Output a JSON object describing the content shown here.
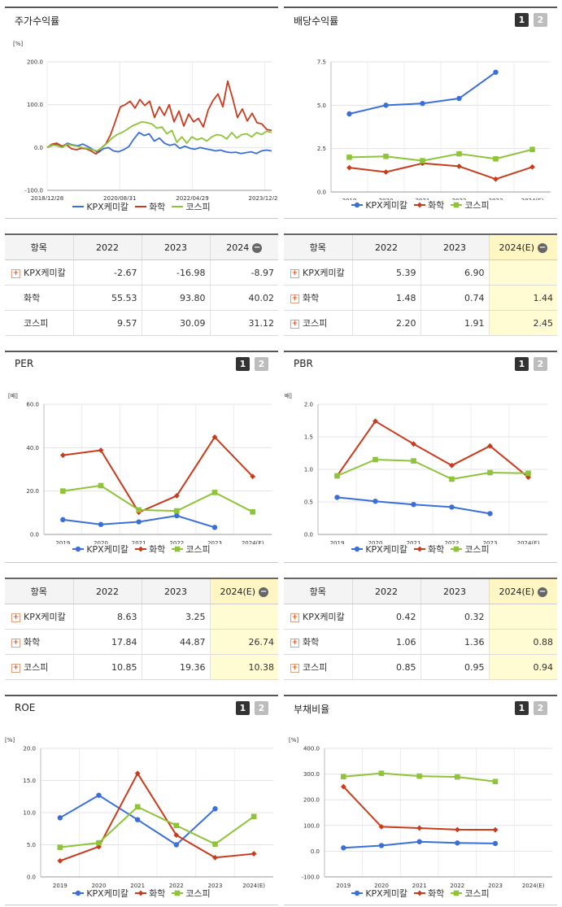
{
  "colors": {
    "kpx": "#3a6fd8",
    "chem": "#c83c1e",
    "kospi": "#8ec33a"
  },
  "series_names": [
    "KPX케미칼",
    "화학",
    "코스피"
  ],
  "tables": {
    "stock": {
      "headers": [
        "항목",
        "2022",
        "2023",
        "2024"
      ],
      "rows": [
        {
          "name": "KPX케미칼",
          "plus": true,
          "values": [
            "-2.67",
            "-16.98",
            "-8.97"
          ]
        },
        {
          "name": "화학",
          "plus": false,
          "values": [
            "55.53",
            "93.80",
            "40.02"
          ]
        },
        {
          "name": "코스피",
          "plus": false,
          "values": [
            "9.57",
            "30.09",
            "31.12"
          ]
        }
      ]
    },
    "dividend": {
      "headers": [
        "항목",
        "2022",
        "2023",
        "2024(E)"
      ],
      "rows": [
        {
          "name": "KPX케미칼",
          "plus": true,
          "values": [
            "5.39",
            "6.90",
            ""
          ]
        },
        {
          "name": "화학",
          "plus": true,
          "values": [
            "1.48",
            "0.74",
            "1.44"
          ]
        },
        {
          "name": "코스피",
          "plus": true,
          "values": [
            "2.20",
            "1.91",
            "2.45"
          ]
        }
      ]
    },
    "per": {
      "headers": [
        "항목",
        "2022",
        "2023",
        "2024(E)"
      ],
      "rows": [
        {
          "name": "KPX케미칼",
          "plus": true,
          "values": [
            "8.63",
            "3.25",
            ""
          ]
        },
        {
          "name": "화학",
          "plus": true,
          "values": [
            "17.84",
            "44.87",
            "26.74"
          ]
        },
        {
          "name": "코스피",
          "plus": true,
          "values": [
            "10.85",
            "19.36",
            "10.38"
          ]
        }
      ]
    },
    "pbr": {
      "headers": [
        "항목",
        "2022",
        "2023",
        "2024(E)"
      ],
      "rows": [
        {
          "name": "KPX케미칼",
          "plus": true,
          "values": [
            "0.42",
            "0.32",
            ""
          ]
        },
        {
          "name": "화학",
          "plus": true,
          "values": [
            "1.06",
            "1.36",
            "0.88"
          ]
        },
        {
          "name": "코스피",
          "plus": true,
          "values": [
            "0.85",
            "0.95",
            "0.94"
          ]
        }
      ]
    }
  },
  "chart_data": [
    {
      "id": "stock",
      "type": "line",
      "title": "주가수익률",
      "ylabel": "[%]",
      "ylim": [
        -100,
        200
      ],
      "yticks": [
        "200.0",
        "100.0",
        "0.0",
        "-100.0"
      ],
      "x_tick_labels": [
        "2018/12/28",
        "2020/08/31",
        "2022/04/29",
        "2023/12/28"
      ],
      "legend": "bottom",
      "series": [
        {
          "name": "KPX케미칼",
          "values": [
            0,
            5,
            8,
            3,
            10,
            6,
            4,
            8,
            2,
            -5,
            -12,
            -3,
            0,
            -8,
            -10,
            -5,
            2,
            20,
            35,
            28,
            32,
            15,
            22,
            10,
            5,
            8,
            -2,
            3,
            -2,
            -4,
            0,
            -3,
            -5,
            -8,
            -6,
            -10,
            -12,
            -11,
            -14,
            -12,
            -10,
            -14,
            -8,
            -6,
            -8
          ]
        },
        {
          "name": "화학",
          "values": [
            0,
            8,
            10,
            3,
            6,
            -3,
            -5,
            -2,
            -3,
            -8,
            -15,
            -2,
            8,
            30,
            62,
            95,
            100,
            108,
            92,
            112,
            98,
            108,
            70,
            95,
            75,
            100,
            60,
            85,
            50,
            78,
            60,
            68,
            48,
            88,
            110,
            125,
            95,
            155,
            115,
            70,
            90,
            62,
            80,
            58,
            55,
            42,
            40
          ]
        },
        {
          "name": "코스피",
          "values": [
            0,
            6,
            4,
            0,
            8,
            5,
            3,
            0,
            -2,
            -5,
            -8,
            0,
            10,
            22,
            30,
            35,
            42,
            50,
            55,
            60,
            58,
            55,
            45,
            48,
            32,
            40,
            12,
            25,
            10,
            25,
            18,
            22,
            15,
            25,
            30,
            28,
            20,
            35,
            22,
            30,
            32,
            25,
            35,
            30,
            38,
            35
          ]
        }
      ]
    },
    {
      "id": "dividend",
      "type": "line",
      "title": "배당수익률",
      "ylabel": "",
      "ylim": [
        0,
        7.5
      ],
      "yticks": [
        "7.5",
        "5.0",
        "2.5",
        "0.0"
      ],
      "categories": [
        "2019",
        "2020",
        "2021",
        "2022",
        "2023",
        "2024(E)"
      ],
      "legend": "bottom",
      "series": [
        {
          "name": "KPX케미칼",
          "values": [
            4.5,
            5.0,
            5.1,
            5.39,
            6.9,
            null
          ]
        },
        {
          "name": "화학",
          "values": [
            1.4,
            1.15,
            1.65,
            1.48,
            0.74,
            1.44
          ]
        },
        {
          "name": "코스피",
          "values": [
            2.0,
            2.05,
            1.8,
            2.2,
            1.91,
            2.45
          ]
        }
      ]
    },
    {
      "id": "per",
      "type": "line",
      "title": "PER",
      "ylabel": "[배]",
      "ylim": [
        0,
        60
      ],
      "yticks": [
        "60.0",
        "40.0",
        "20.0",
        "0.0"
      ],
      "categories": [
        "2019",
        "2020",
        "2021",
        "2022",
        "2023",
        "2024(E)"
      ],
      "legend": "bottom",
      "series": [
        {
          "name": "KPX케미칼",
          "values": [
            6.8,
            4.6,
            5.8,
            8.63,
            3.25,
            null
          ]
        },
        {
          "name": "화학",
          "values": [
            36.5,
            38.8,
            10.2,
            17.84,
            44.87,
            26.74
          ]
        },
        {
          "name": "코스피",
          "values": [
            20.0,
            22.5,
            11.3,
            10.85,
            19.36,
            10.38
          ]
        }
      ]
    },
    {
      "id": "pbr",
      "type": "line",
      "title": "PBR",
      "ylabel": "[배]",
      "ylim": [
        0,
        2
      ],
      "yticks": [
        "2.0",
        "1.5",
        "1.0",
        "0.5",
        "0.0"
      ],
      "categories": [
        "2019",
        "2020",
        "2021",
        "2022",
        "2023",
        "2024(E)"
      ],
      "legend": "bottom",
      "series": [
        {
          "name": "KPX케미칼",
          "values": [
            0.57,
            0.51,
            0.46,
            0.42,
            0.32,
            null
          ]
        },
        {
          "name": "화학",
          "values": [
            0.9,
            1.74,
            1.39,
            1.06,
            1.36,
            0.88
          ]
        },
        {
          "name": "코스피",
          "values": [
            0.9,
            1.15,
            1.13,
            0.85,
            0.95,
            0.94
          ]
        }
      ]
    },
    {
      "id": "roe",
      "type": "line",
      "title": "ROE",
      "ylabel": "[%]",
      "ylim": [
        0,
        20
      ],
      "yticks": [
        "20.0",
        "15.0",
        "10.0",
        "5.0",
        "0.0"
      ],
      "categories": [
        "2019",
        "2020",
        "2021",
        "2022",
        "2023",
        "2024(E)"
      ],
      "legend": "bottom",
      "series": [
        {
          "name": "KPX케미칼",
          "values": [
            9.2,
            12.7,
            8.9,
            5.0,
            10.6,
            null
          ]
        },
        {
          "name": "화학",
          "values": [
            2.5,
            4.7,
            16.1,
            6.5,
            3.0,
            3.6
          ]
        },
        {
          "name": "코스피",
          "values": [
            4.6,
            5.3,
            10.9,
            8.0,
            5.1,
            9.4
          ]
        }
      ]
    },
    {
      "id": "debt",
      "type": "line",
      "title": "부채비율",
      "ylabel": "[%]",
      "ylim": [
        -100,
        400
      ],
      "yticks": [
        "400.0",
        "300.0",
        "200.0",
        "100.0",
        "0.0",
        "-100.0"
      ],
      "categories": [
        "2019",
        "2020",
        "2021",
        "2022",
        "2023",
        "2024(E)"
      ],
      "legend": "bottom",
      "series": [
        {
          "name": "KPX케미칼",
          "values": [
            13,
            22,
            37,
            32,
            30,
            null
          ]
        },
        {
          "name": "화학",
          "values": [
            251,
            95,
            90,
            84,
            83,
            null
          ]
        },
        {
          "name": "코스피",
          "values": [
            290,
            303,
            292,
            289,
            271,
            null
          ]
        }
      ]
    }
  ]
}
